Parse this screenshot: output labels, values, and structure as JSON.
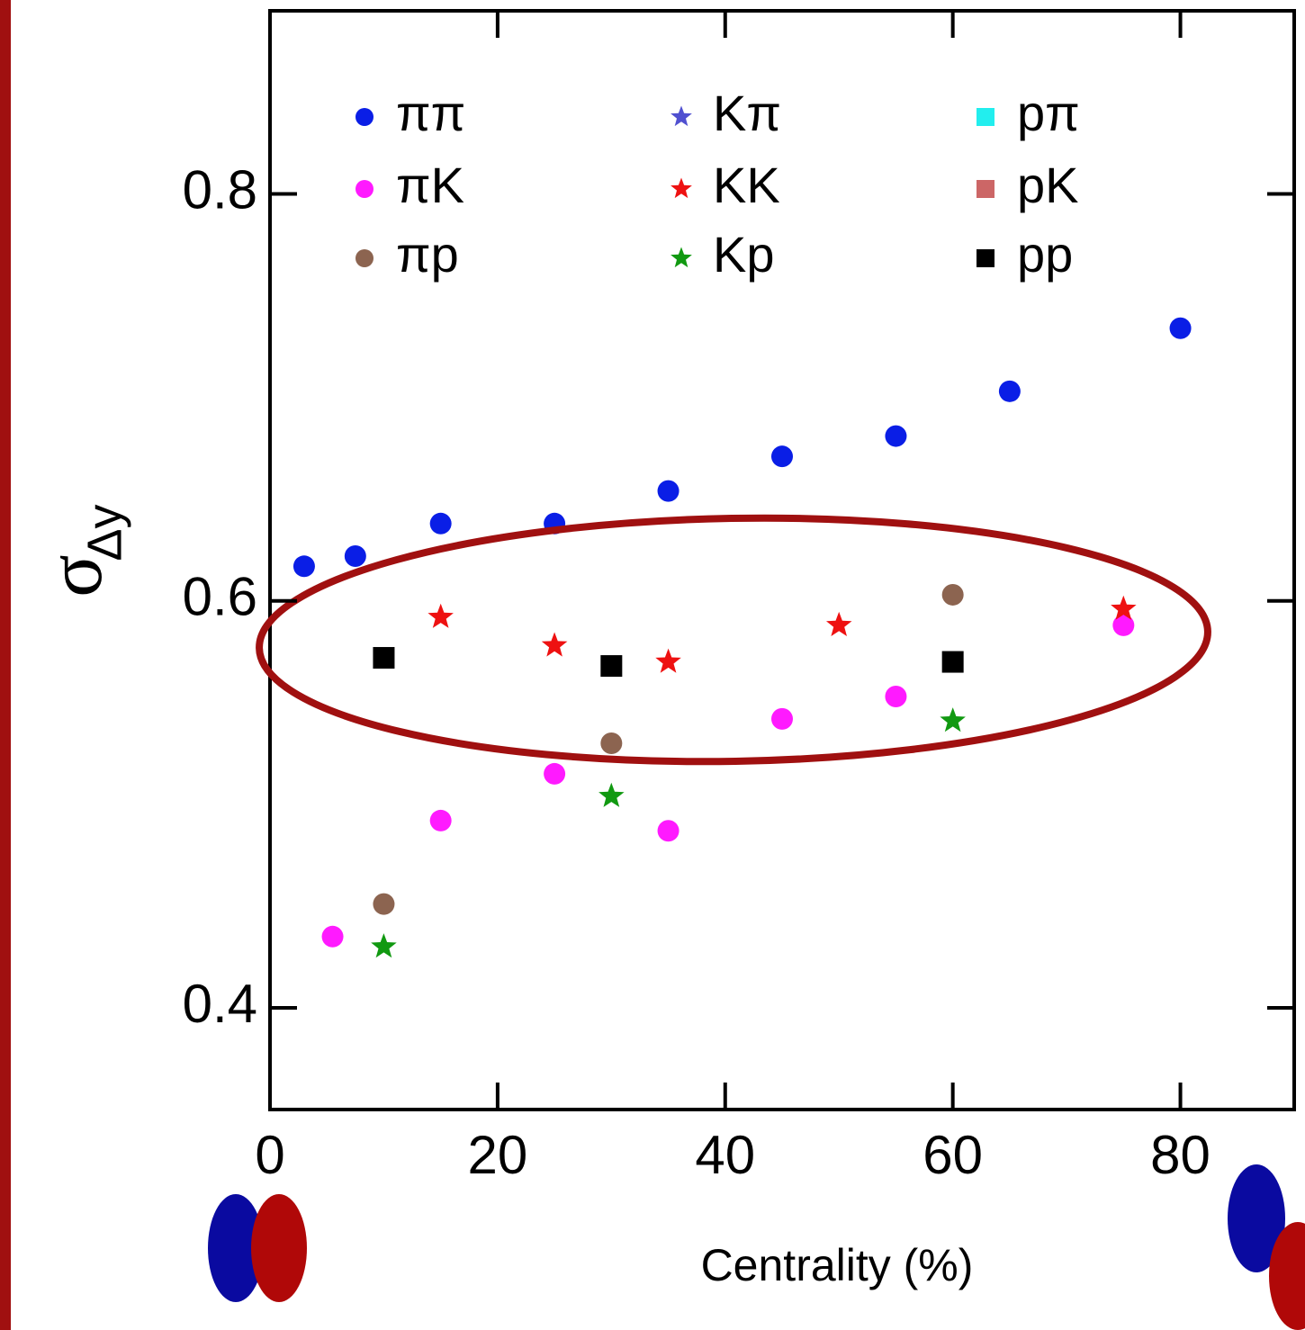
{
  "chart_data": {
    "type": "scatter",
    "y_label": "σ",
    "y_label_sub": "Δy",
    "x_label": "Centrality (%)",
    "xlim": [
      0,
      90
    ],
    "ylim": [
      0.35,
      0.89
    ],
    "xticks": [
      0,
      20,
      40,
      60,
      80
    ],
    "yticks": [
      0.4,
      0.6,
      0.8
    ],
    "series": [
      {
        "name": "ππ",
        "color": "#0a1ee6",
        "marker": "circle",
        "x": [
          3,
          7.5,
          15,
          25,
          35,
          45,
          55,
          65,
          80
        ],
        "values": [
          0.617,
          0.622,
          0.638,
          0.638,
          0.654,
          0.671,
          0.681,
          0.703,
          0.734
        ]
      },
      {
        "name": "πK",
        "color": "#ff1aff",
        "marker": "circle",
        "x": [
          5.5,
          15,
          25,
          35,
          45,
          55,
          75
        ],
        "values": [
          0.435,
          0.492,
          0.515,
          0.487,
          0.542,
          0.553,
          0.588
        ]
      },
      {
        "name": "πp",
        "color": "#8c6450",
        "marker": "circle",
        "x": [
          10,
          30,
          60
        ],
        "values": [
          0.451,
          0.53,
          0.603
        ]
      },
      {
        "name": "Kπ",
        "color": "#5050d0",
        "marker": "star",
        "x": [],
        "values": []
      },
      {
        "name": "KK",
        "color": "#ee1111",
        "marker": "star",
        "x": [
          15,
          25,
          35,
          50,
          75
        ],
        "values": [
          0.592,
          0.578,
          0.57,
          0.588,
          0.596
        ]
      },
      {
        "name": "Kp",
        "color": "#119911",
        "marker": "star",
        "x": [
          10,
          30,
          60
        ],
        "values": [
          0.43,
          0.504,
          0.541
        ]
      },
      {
        "name": "pπ",
        "color": "#22eeee",
        "marker": "square",
        "x": [],
        "values": []
      },
      {
        "name": "pK",
        "color": "#cc6666",
        "marker": "square",
        "x": [],
        "values": []
      },
      {
        "name": "pp",
        "color": "#000000",
        "marker": "square",
        "x": [
          10,
          30,
          60
        ],
        "values": [
          0.572,
          0.568,
          0.57
        ]
      }
    ]
  }
}
